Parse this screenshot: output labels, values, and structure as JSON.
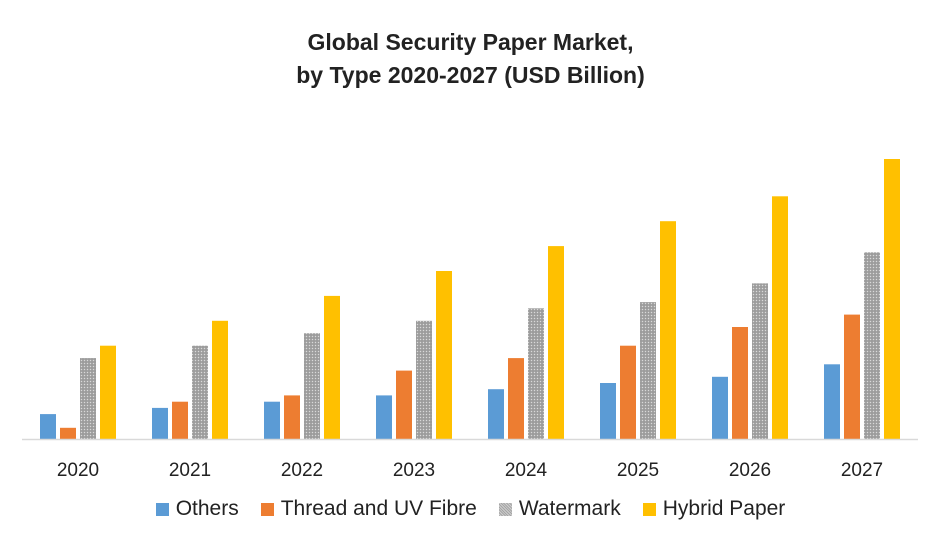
{
  "chart_data": {
    "type": "bar",
    "title_line1": "Global Security Paper Market,",
    "title_line2": "by Type 2020-2027 (USD Billion)",
    "xlabel": "",
    "ylabel": "",
    "grid": false,
    "legend_position": "bottom",
    "categories": [
      "2020",
      "2021",
      "2022",
      "2023",
      "2024",
      "2025",
      "2026",
      "2027"
    ],
    "series": [
      {
        "name": "Others",
        "color": "#5b9bd5",
        "values": [
          0.4,
          0.5,
          0.6,
          0.7,
          0.8,
          0.9,
          1.0,
          1.2
        ]
      },
      {
        "name": "Thread and UV Fibre",
        "color": "#ed7d31",
        "values": [
          0.18,
          0.6,
          0.7,
          1.1,
          1.3,
          1.5,
          1.8,
          2.0
        ]
      },
      {
        "name": "Watermark",
        "color": "#a5a5a5",
        "values": [
          1.3,
          1.5,
          1.7,
          1.9,
          2.1,
          2.2,
          2.5,
          3.0
        ]
      },
      {
        "name": "Hybrid Paper",
        "color": "#ffc000",
        "values": [
          1.5,
          1.9,
          2.3,
          2.7,
          3.1,
          3.5,
          3.9,
          4.5
        ]
      }
    ],
    "ylim": [
      0,
      4.5
    ]
  }
}
